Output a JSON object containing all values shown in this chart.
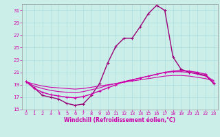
{
  "xlabel": "Windchill (Refroidissement éolien,°C)",
  "xlim": [
    -0.5,
    23.5
  ],
  "ylim": [
    15,
    32
  ],
  "yticks": [
    15,
    17,
    19,
    21,
    23,
    25,
    27,
    29,
    31
  ],
  "xticks": [
    0,
    1,
    2,
    3,
    4,
    5,
    6,
    7,
    8,
    9,
    10,
    11,
    12,
    13,
    14,
    15,
    16,
    17,
    18,
    19,
    20,
    21,
    22,
    23
  ],
  "bg_color": "#cceee8",
  "grid_color": "#aadddd",
  "line_color": "#cc00aa",
  "line_color_dark": "#990077",
  "curves": {
    "curve1_main": [
      [
        0,
        19.5
      ],
      [
        1,
        18.5
      ],
      [
        2,
        17.3
      ],
      [
        3,
        17.0
      ],
      [
        4,
        16.7
      ],
      [
        5,
        16.0
      ],
      [
        6,
        15.7
      ],
      [
        7,
        15.9
      ],
      [
        8,
        17.3
      ],
      [
        9,
        19.2
      ],
      [
        10,
        22.5
      ],
      [
        11,
        25.2
      ],
      [
        12,
        26.5
      ],
      [
        13,
        26.5
      ],
      [
        14,
        28.4
      ],
      [
        15,
        30.5
      ],
      [
        16,
        31.8
      ],
      [
        17,
        31.0
      ],
      [
        18,
        23.5
      ],
      [
        19,
        21.5
      ],
      [
        20,
        21.0
      ],
      [
        21,
        20.8
      ],
      [
        22,
        20.5
      ],
      [
        23,
        19.2
      ]
    ],
    "curve2": [
      [
        0,
        19.5
      ],
      [
        1,
        18.4
      ],
      [
        2,
        17.8
      ],
      [
        3,
        17.4
      ],
      [
        4,
        17.2
      ],
      [
        5,
        17.0
      ],
      [
        6,
        16.9
      ],
      [
        7,
        17.1
      ],
      [
        8,
        17.5
      ],
      [
        9,
        18.0
      ],
      [
        10,
        18.5
      ],
      [
        11,
        19.0
      ],
      [
        12,
        19.5
      ],
      [
        13,
        19.8
      ],
      [
        14,
        20.1
      ],
      [
        15,
        20.4
      ],
      [
        16,
        20.7
      ],
      [
        17,
        21.0
      ],
      [
        18,
        21.2
      ],
      [
        19,
        21.3
      ],
      [
        20,
        21.2
      ],
      [
        21,
        21.0
      ],
      [
        22,
        20.7
      ],
      [
        23,
        19.3
      ]
    ],
    "curve3": [
      [
        0,
        19.5
      ],
      [
        1,
        18.8
      ],
      [
        2,
        18.4
      ],
      [
        3,
        18.1
      ],
      [
        4,
        17.9
      ],
      [
        5,
        17.8
      ],
      [
        6,
        17.7
      ],
      [
        7,
        17.9
      ],
      [
        8,
        18.2
      ],
      [
        9,
        18.5
      ],
      [
        10,
        18.9
      ],
      [
        11,
        19.2
      ],
      [
        12,
        19.5
      ],
      [
        13,
        19.8
      ],
      [
        14,
        20.1
      ],
      [
        15,
        20.4
      ],
      [
        16,
        20.7
      ],
      [
        17,
        21.0
      ],
      [
        18,
        21.1
      ],
      [
        19,
        21.1
      ],
      [
        20,
        21.0
      ],
      [
        21,
        20.7
      ],
      [
        22,
        20.4
      ],
      [
        23,
        19.7
      ]
    ],
    "curve4": [
      [
        0,
        19.5
      ],
      [
        1,
        19.1
      ],
      [
        2,
        18.8
      ],
      [
        3,
        18.6
      ],
      [
        4,
        18.5
      ],
      [
        5,
        18.4
      ],
      [
        6,
        18.3
      ],
      [
        7,
        18.4
      ],
      [
        8,
        18.6
      ],
      [
        9,
        18.8
      ],
      [
        10,
        19.0
      ],
      [
        11,
        19.2
      ],
      [
        12,
        19.4
      ],
      [
        13,
        19.6
      ],
      [
        14,
        19.8
      ],
      [
        15,
        20.0
      ],
      [
        16,
        20.2
      ],
      [
        17,
        20.4
      ],
      [
        18,
        20.5
      ],
      [
        19,
        20.5
      ],
      [
        20,
        20.4
      ],
      [
        21,
        20.2
      ],
      [
        22,
        20.0
      ],
      [
        23,
        19.6
      ]
    ]
  }
}
